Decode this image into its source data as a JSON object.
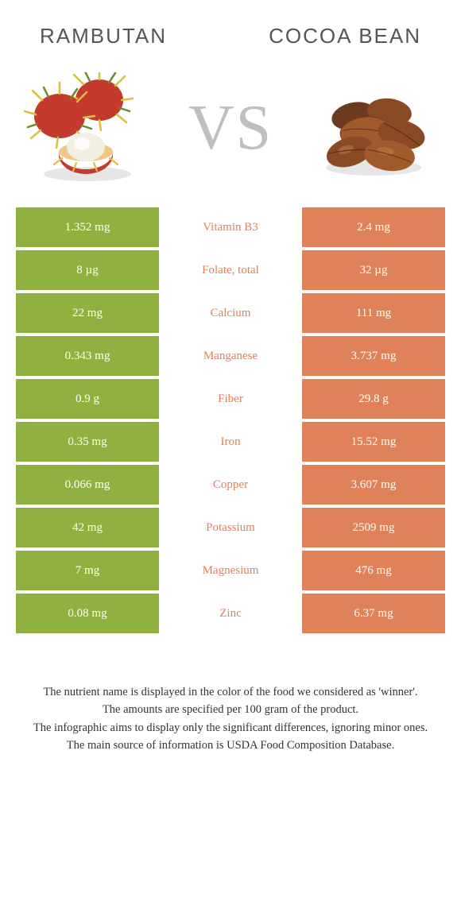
{
  "titles": {
    "left": "RAMBUTAN",
    "right": "COCOA BEAN"
  },
  "vs": "VS",
  "colors": {
    "left": "#8fb13f",
    "right": "#df8259",
    "mid_bg": "#ffffff",
    "row_gap": "#ffffff"
  },
  "rows": [
    {
      "left": "1.352 mg",
      "name": "Vitamin B3",
      "right": "2.4 mg",
      "winner": "right"
    },
    {
      "left": "8 µg",
      "name": "Folate, total",
      "right": "32 µg",
      "winner": "right"
    },
    {
      "left": "22 mg",
      "name": "Calcium",
      "right": "111 mg",
      "winner": "right"
    },
    {
      "left": "0.343 mg",
      "name": "Manganese",
      "right": "3.737 mg",
      "winner": "right"
    },
    {
      "left": "0.9 g",
      "name": "Fiber",
      "right": "29.8 g",
      "winner": "right"
    },
    {
      "left": "0.35 mg",
      "name": "Iron",
      "right": "15.52 mg",
      "winner": "right"
    },
    {
      "left": "0.066 mg",
      "name": "Copper",
      "right": "3.607 mg",
      "winner": "right"
    },
    {
      "left": "42 mg",
      "name": "Potassium",
      "right": "2509 mg",
      "winner": "right"
    },
    {
      "left": "7 mg",
      "name": "Magnesium",
      "right": "476 mg",
      "winner": "right"
    },
    {
      "left": "0.08 mg",
      "name": "Zinc",
      "right": "6.37 mg",
      "winner": "right"
    }
  ],
  "footnotes": [
    "The nutrient name is displayed in the color of the food we considered as 'winner'.",
    "The amounts are specified per 100 gram of the product.",
    "The infographic aims to display only the significant differences, ignoring minor ones.",
    "The main source of information is USDA Food Composition Database."
  ],
  "images": {
    "rambutan": {
      "shell_color": "#c43a2d",
      "hair_color": "#d9c13a",
      "hair_green": "#6a8a2a",
      "flesh_color": "#f3eee2",
      "shadow": "#dddddd"
    },
    "cocoa": {
      "bean_light": "#a05a2c",
      "bean_dark": "#6e3a1e",
      "highlight": "#c07a45",
      "shadow": "#dddddd"
    }
  }
}
